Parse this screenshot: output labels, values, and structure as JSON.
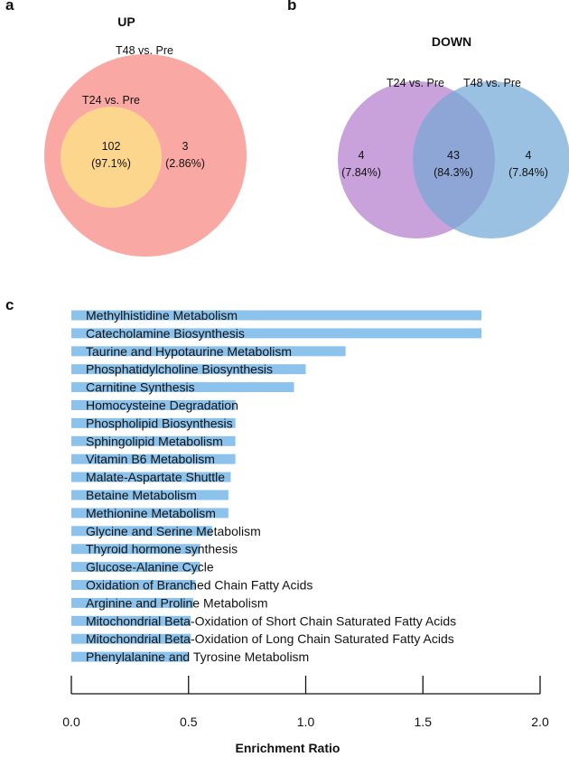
{
  "panels": {
    "a": "a",
    "b": "b",
    "c": "c"
  },
  "venn_up": {
    "title": "UP",
    "outer_label": "T48 vs. Pre",
    "inner_label": "T24 vs. Pre",
    "inner_count": "102",
    "inner_pct": "(97.1%)",
    "outer_only_count": "3",
    "outer_only_pct": "(2.86%)",
    "colors": {
      "outer": "#f9a8a4",
      "inner": "#fbd68c"
    }
  },
  "venn_down": {
    "title": "DOWN",
    "left_label": "T24 vs. Pre",
    "right_label": "T48 vs. Pre",
    "left_count": "4",
    "left_pct": "(7.84%)",
    "overlap_count": "43",
    "overlap_pct": "(84.3%)",
    "right_count": "4",
    "right_pct": "(7.84%)",
    "colors": {
      "left": "#c9a2dc",
      "right": "#9ac1e2",
      "overlap": "#8ea6d5"
    }
  },
  "chart_data": {
    "type": "bar",
    "orientation": "horizontal",
    "xlabel": "Enrichment Ratio",
    "xlim": [
      0,
      2.0
    ],
    "xticks": [
      "0.0",
      "0.5",
      "1.0",
      "1.5",
      "2.0"
    ],
    "bar_color": "#8cc3ec",
    "categories": [
      "Methylhistidine Metabolism",
      "Catecholamine Biosynthesis",
      "Taurine and Hypotaurine Metabolism",
      "Phosphatidylcholine Biosynthesis",
      "Carnitine Synthesis",
      "Homocysteine Degradation",
      "Phospholipid Biosynthesis",
      "Sphingolipid Metabolism",
      "Vitamin B6 Metabolism",
      "Malate-Aspartate Shuttle",
      "Betaine Metabolism",
      "Methionine Metabolism",
      "Glycine and Serine Metabolism",
      "Thyroid hormone synthesis",
      "Glucose-Alanine Cycle",
      "Oxidation of Branched Chain Fatty Acids",
      "Arginine and Proline Metabolism",
      "Mitochondrial Beta-Oxidation of Short Chain Saturated Fatty Acids",
      "Mitochondrial Beta-Oxidation of Long Chain Saturated Fatty Acids",
      "Phenylalanine and Tyrosine Metabolism"
    ],
    "values": [
      1.75,
      1.75,
      1.17,
      1.0,
      0.95,
      0.7,
      0.7,
      0.7,
      0.7,
      0.68,
      0.67,
      0.67,
      0.6,
      0.55,
      0.55,
      0.53,
      0.52,
      0.51,
      0.51,
      0.5
    ]
  }
}
